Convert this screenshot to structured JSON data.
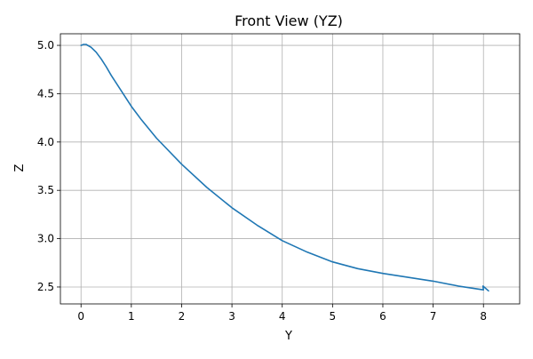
{
  "chart_data": {
    "type": "line",
    "title": "Front View (YZ)",
    "xlabel": "Y",
    "ylabel": "Z",
    "xlim": [
      -0.41,
      8.72
    ],
    "ylim": [
      2.325,
      5.12
    ],
    "xticks": [
      0,
      1,
      2,
      3,
      4,
      5,
      6,
      7,
      8
    ],
    "yticks": [
      2.5,
      3.0,
      3.5,
      4.0,
      4.5,
      5.0
    ],
    "xtick_labels": [
      "0",
      "1",
      "2",
      "3",
      "4",
      "5",
      "6",
      "7",
      "8"
    ],
    "ytick_labels": [
      "2.5",
      "3.0",
      "3.5",
      "4.0",
      "4.5",
      "5.0"
    ],
    "grid": true,
    "legend": false,
    "series": [
      {
        "color": "#1f77b4",
        "x": [
          0.0,
          0.05,
          0.1,
          0.2,
          0.3,
          0.4,
          0.5,
          0.6,
          0.8,
          1.0,
          1.2,
          1.5,
          2.0,
          2.5,
          3.0,
          3.5,
          4.0,
          4.5,
          5.0,
          5.5,
          6.0,
          6.5,
          7.0,
          7.5,
          8.0,
          7.99,
          8.1
        ],
        "y": [
          5.0,
          5.01,
          5.01,
          4.98,
          4.93,
          4.86,
          4.78,
          4.69,
          4.53,
          4.37,
          4.23,
          4.04,
          3.77,
          3.53,
          3.32,
          3.14,
          2.98,
          2.86,
          2.76,
          2.69,
          2.64,
          2.6,
          2.56,
          2.51,
          2.47,
          2.51,
          2.46
        ]
      }
    ]
  }
}
